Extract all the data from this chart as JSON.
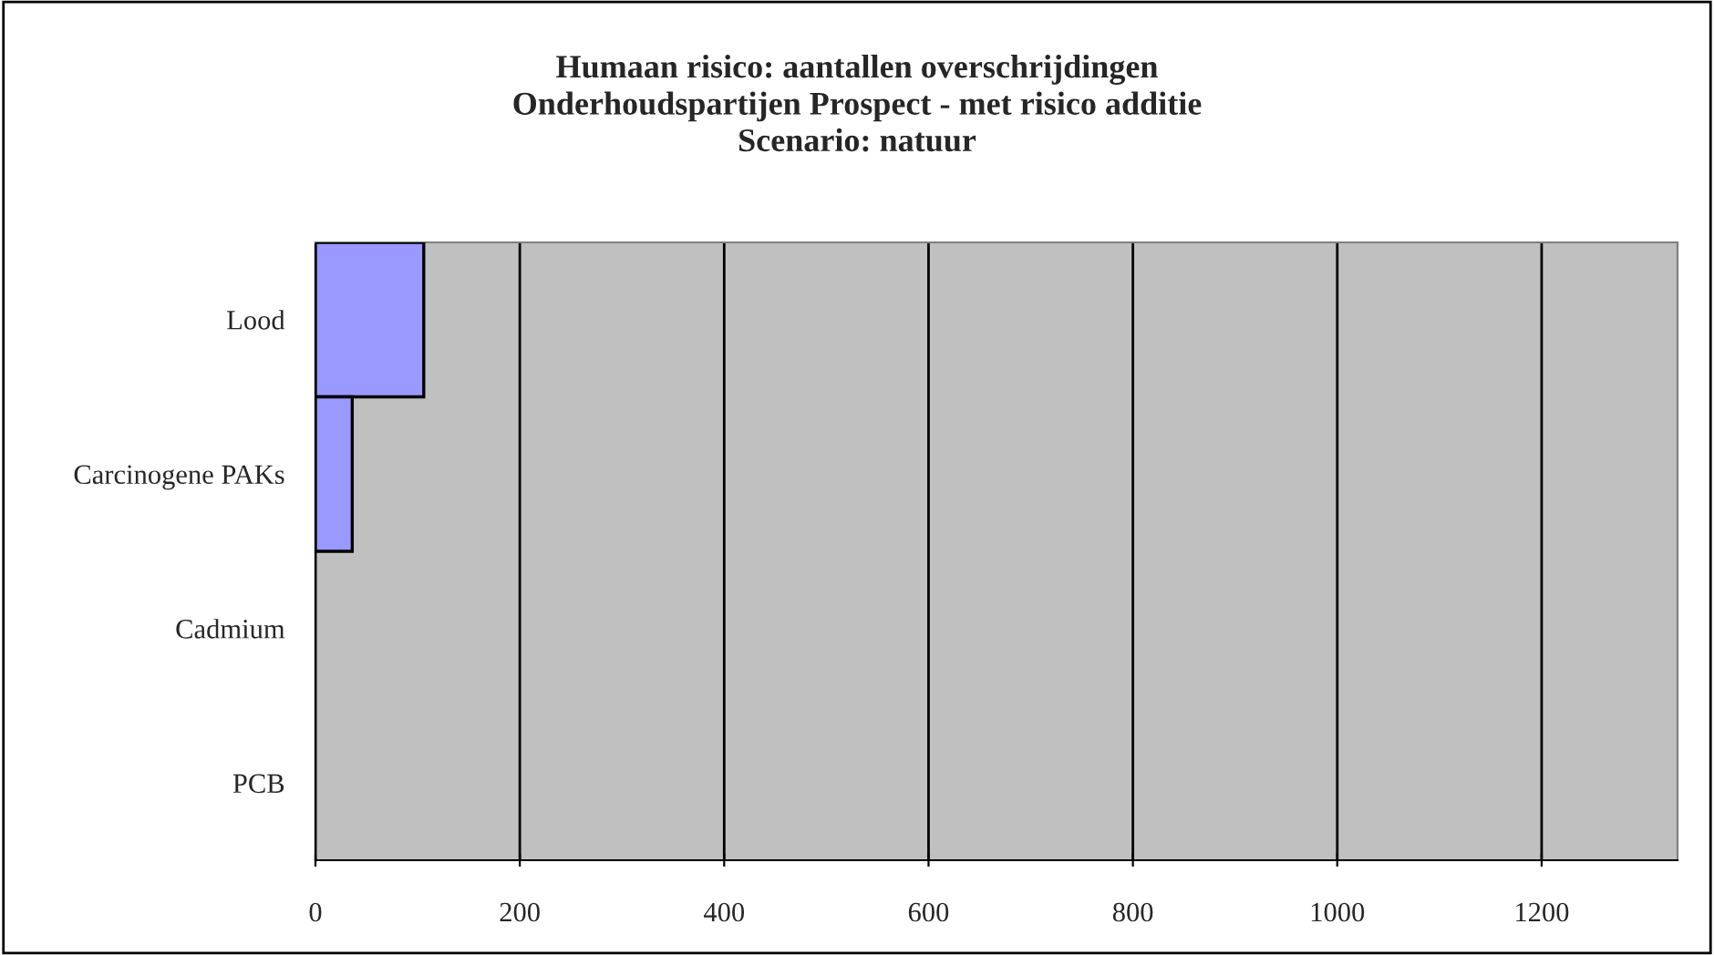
{
  "chart_data": {
    "type": "bar",
    "orientation": "horizontal",
    "title": "Humaan risico: aantallen overschrijdingen\nOnderhoudspartijen Prospect - met risico additie\nScenario: natuur",
    "categories": [
      "Lood",
      "Carcinogene PAKs",
      "Cadmium",
      "PCB"
    ],
    "series": [
      {
        "color": "#9999ff",
        "values": [
          106,
          36,
          0,
          0
        ]
      }
    ],
    "xlim": [
      0,
      1333
    ],
    "xticks": [
      0,
      200,
      400,
      600,
      800,
      1000,
      1200
    ],
    "grid": "x",
    "legend": false
  }
}
